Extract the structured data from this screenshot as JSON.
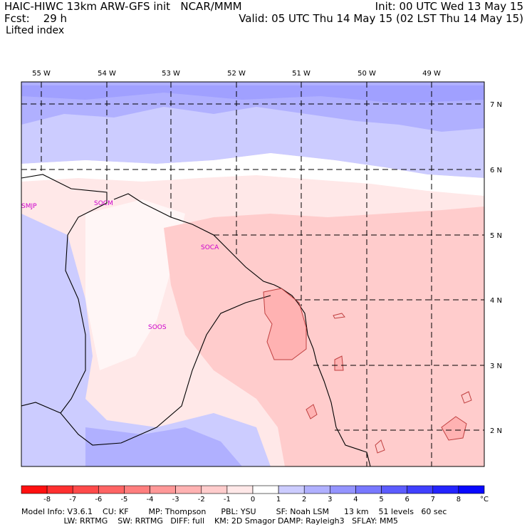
{
  "header": {
    "model": "HAIC-HIWC 13km ARW-GFS init",
    "org": "NCAR/MMM",
    "fcst_label": "Fcst:",
    "fcst_value": "29 h",
    "field": "Lifted index",
    "init": "Init: 00 UTC Wed 13 May 15",
    "valid": "Valid: 05 UTC Thu 14 May 15 (02 LST Thu 14 May 15)"
  },
  "map": {
    "lon_labels": [
      "55 W",
      "54 W",
      "53 W",
      "52 W",
      "51 W",
      "50 W",
      "49 W"
    ],
    "lat_labels": [
      "7 N",
      "6 N",
      "5 N",
      "4 N",
      "3 N",
      "2 N"
    ],
    "stations": [
      "SMJP",
      "SOCM",
      "SOCA",
      "SOOS"
    ]
  },
  "colorbar": {
    "levels": [
      "-8",
      "-7",
      "-6",
      "-5",
      "-4",
      "-3",
      "-2",
      "-1",
      "0",
      "1",
      "2",
      "3",
      "4",
      "5",
      "6",
      "7",
      "8"
    ],
    "unit": "°C",
    "colors": [
      "#ff1010",
      "#ff3030",
      "#ff4a4a",
      "#ff6464",
      "#ff7e7e",
      "#ff9898",
      "#ffb2b2",
      "#ffcccc",
      "#ffe8e8",
      "#ffffff",
      "#ccccff",
      "#b0b0ff",
      "#9494ff",
      "#7878ff",
      "#5c5cff",
      "#4040ff",
      "#2424ff",
      "#0808ff"
    ]
  },
  "footer": {
    "line1": "Model Info: V3.6.1    CU: KF        MP: Thompson      PBL: YSU        SF: Noah LSM      13 km    51 levels   60 sec",
    "line2": "                 LW: RRTMG    SW: RRTMG   DIFF: full    KM: 2D Smagor DAMP: Rayleigh3   SFLAY: MM5"
  }
}
